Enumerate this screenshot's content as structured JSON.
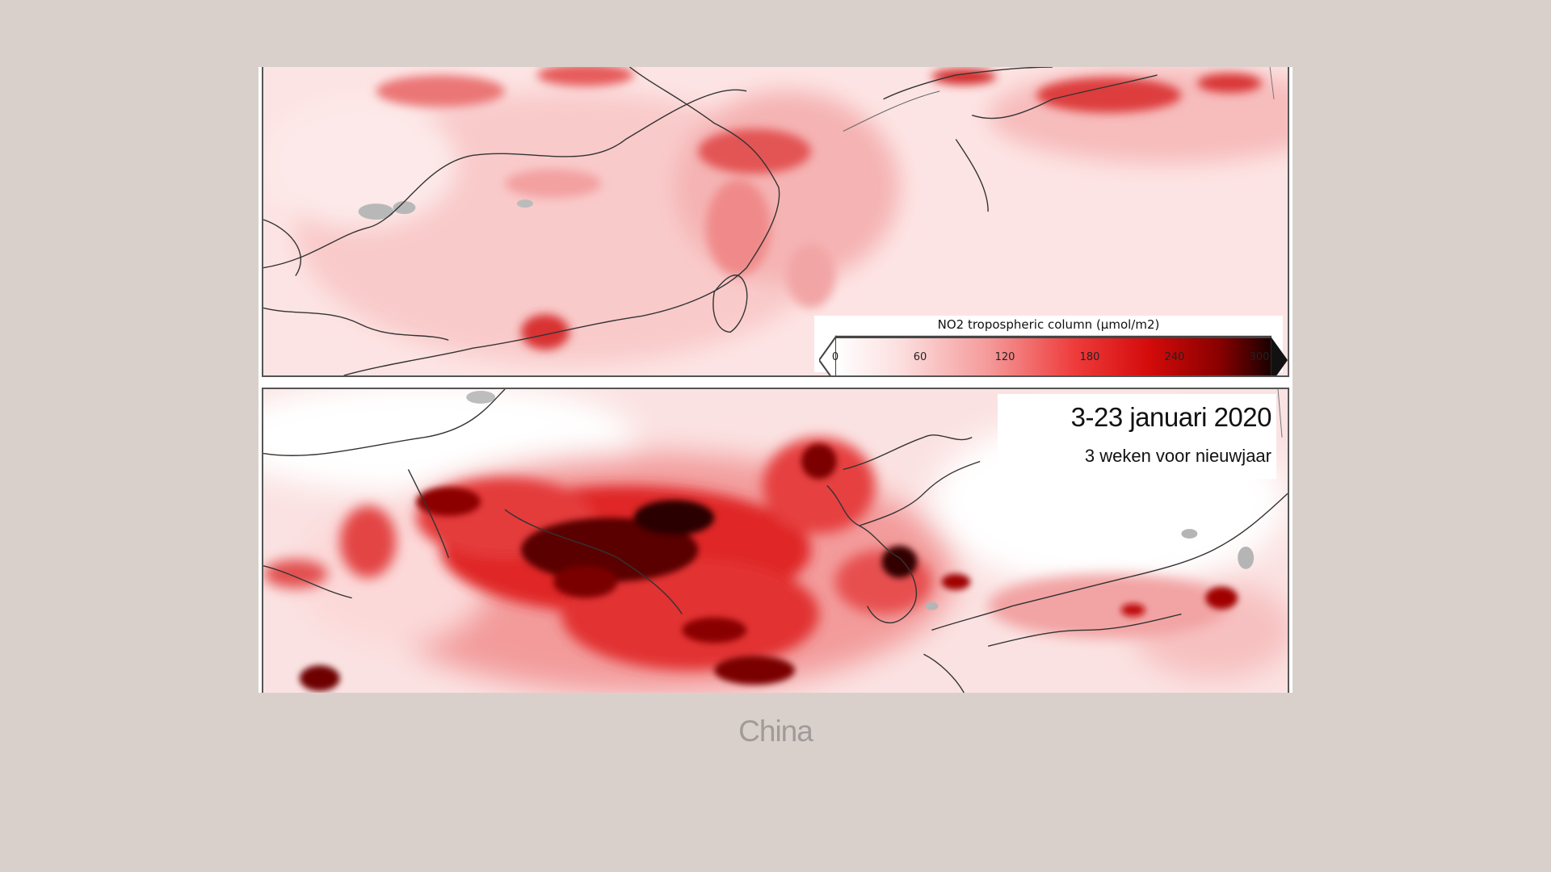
{
  "map": {
    "region": "East Asia",
    "layers": "tropospheric NO2 column",
    "colorbar": {
      "title": "NO2 tropospheric column (μmol/m2)",
      "min": 0,
      "max": 300,
      "ticks": [
        "0",
        "60",
        "120",
        "180",
        "240",
        "300"
      ],
      "colors": [
        "#ffffff",
        "#fcdede",
        "#f59a9a",
        "#ee3b3b",
        "#d40b0b",
        "#8a0000",
        "#1a0000"
      ]
    },
    "panels": [
      {
        "period_title": "",
        "period_subtitle": ""
      },
      {
        "period_title": "3-23 januari 2020",
        "period_subtitle": "3 weken voor nieuwjaar"
      }
    ]
  },
  "caption": "China"
}
